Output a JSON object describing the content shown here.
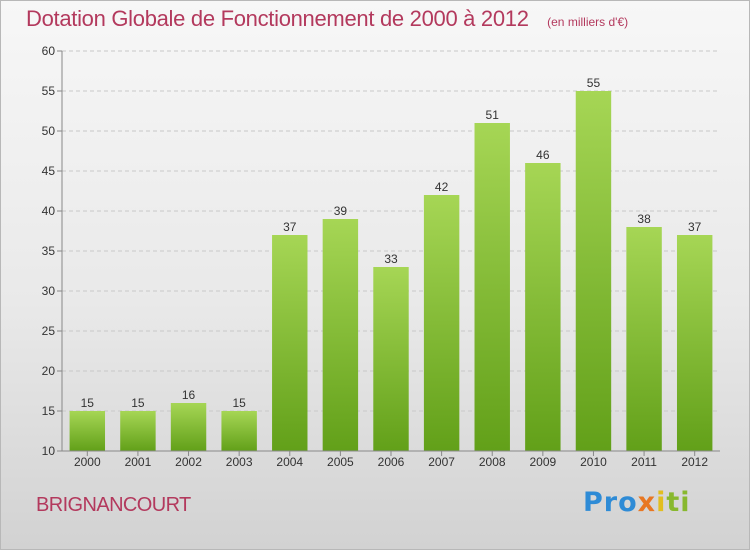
{
  "title": "Dotation Globale de Fonctionnement de 2000 à 2012",
  "subtitle": "(en milliers d'€)",
  "place": "BRIGNANCOURT",
  "logo": [
    "Pro",
    "x",
    "i",
    "ti"
  ],
  "colors": {
    "title": "#b3395d",
    "bar_top": "#a6d655",
    "bar_bottom": "#62a019",
    "grid": "#c8c8c8"
  },
  "chart_data": {
    "type": "bar",
    "categories": [
      "2000",
      "2001",
      "2002",
      "2003",
      "2004",
      "2005",
      "2006",
      "2007",
      "2008",
      "2009",
      "2010",
      "2011",
      "2012"
    ],
    "values": [
      15,
      15,
      16,
      15,
      37,
      39,
      33,
      42,
      51,
      46,
      55,
      38,
      37
    ],
    "ylim": [
      10,
      60
    ],
    "yticks": [
      10,
      15,
      20,
      25,
      30,
      35,
      40,
      45,
      50,
      55,
      60
    ],
    "grid": "horizontal dashed",
    "legend": "none"
  }
}
